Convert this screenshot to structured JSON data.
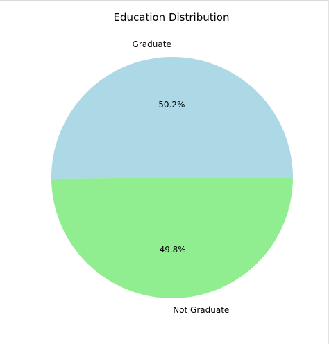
{
  "chart_data": {
    "type": "pie",
    "title": "Education Distribution",
    "categories": [
      "Graduate",
      "Not Graduate"
    ],
    "values": [
      50.2,
      49.8
    ],
    "percent_labels": [
      "50.2%",
      "49.8%"
    ],
    "colors": [
      "#add8e6",
      "#90ee90"
    ],
    "legend": "none"
  }
}
